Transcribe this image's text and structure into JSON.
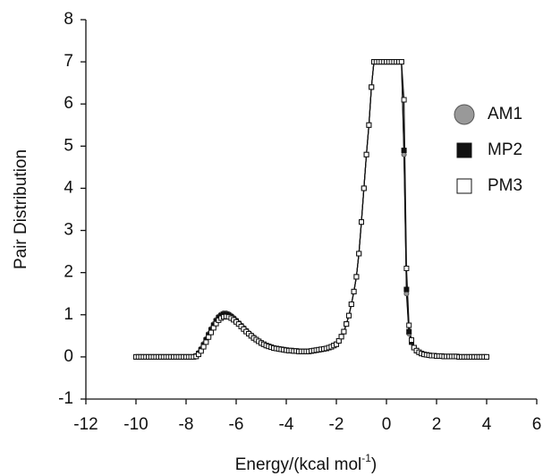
{
  "chart_data": {
    "type": "scatter",
    "y_label": "Pair Distribution",
    "x_label": "Energy/(kcal mol",
    "x_label_sup": "-1",
    "x_label_end": ")",
    "xlim": [
      -12,
      6
    ],
    "xticks": [
      -12,
      -10,
      -8,
      -6,
      -4,
      -2,
      0,
      2,
      4,
      6
    ],
    "ylim": [
      -1,
      8
    ],
    "yticks": [
      -1,
      0,
      1,
      2,
      3,
      4,
      5,
      6,
      7,
      8
    ],
    "legend": "upper-right",
    "line_color": "#111111",
    "x": [
      -10,
      -9.9,
      -9.8,
      -9.7,
      -9.6,
      -9.5,
      -9.4,
      -9.3,
      -9.2,
      -9.1,
      -9,
      -8.9,
      -8.8,
      -8.7,
      -8.6,
      -8.5,
      -8.4,
      -8.3,
      -8.2,
      -8.1,
      -8,
      -7.9,
      -7.8,
      -7.7,
      -7.6,
      -7.5,
      -7.4,
      -7.3,
      -7.2,
      -7.1,
      -7,
      -6.9,
      -6.8,
      -6.7,
      -6.6,
      -6.5,
      -6.4,
      -6.3,
      -6.2,
      -6.1,
      -6,
      -5.9,
      -5.8,
      -5.7,
      -5.6,
      -5.5,
      -5.4,
      -5.3,
      -5.2,
      -5.1,
      -5,
      -4.9,
      -4.8,
      -4.7,
      -4.6,
      -4.5,
      -4.4,
      -4.3,
      -4.2,
      -4.1,
      -4,
      -3.9,
      -3.8,
      -3.7,
      -3.6,
      -3.5,
      -3.4,
      -3.3,
      -3.2,
      -3.1,
      -3,
      -2.9,
      -2.8,
      -2.7,
      -2.6,
      -2.5,
      -2.4,
      -2.3,
      -2.2,
      -2.1,
      -2,
      -1.9,
      -1.8,
      -1.7,
      -1.6,
      -1.5,
      -1.4,
      -1.3,
      -1.2,
      -1.1,
      -1,
      -0.9,
      -0.8,
      -0.7,
      -0.6,
      -0.5,
      -0.4,
      -0.3,
      -0.2,
      -0.1,
      0,
      0.1,
      0.2,
      0.3,
      0.4,
      0.5,
      0.6,
      0.7,
      0.8,
      0.9,
      1,
      1.1,
      1.2,
      1.3,
      1.4,
      1.5,
      1.6,
      1.7,
      1.8,
      1.9,
      2,
      2.1,
      2.2,
      2.3,
      2.4,
      2.5,
      2.6,
      2.7,
      2.8,
      2.9,
      3,
      3.1,
      3.2,
      3.3,
      3.4,
      3.5,
      3.6,
      3.7,
      3.8,
      3.9,
      4
    ],
    "series": [
      {
        "name": "AM1",
        "marker": "circle",
        "color": "#999999",
        "edge": "#555555",
        "values": [
          0,
          0,
          0,
          0,
          0,
          0,
          0,
          0,
          0,
          0,
          0,
          0,
          0,
          0,
          0,
          0,
          0,
          0,
          0,
          0,
          0,
          0,
          0,
          0,
          0.03,
          0.1,
          0.2,
          0.31,
          0.43,
          0.55,
          0.67,
          0.78,
          0.88,
          0.96,
          1.01,
          1.04,
          1.04,
          1.02,
          0.98,
          0.93,
          0.87,
          0.81,
          0.75,
          0.69,
          0.63,
          0.57,
          0.52,
          0.47,
          0.42,
          0.38,
          0.34,
          0.3,
          0.27,
          0.25,
          0.23,
          0.21,
          0.2,
          0.19,
          0.18,
          0.17,
          0.16,
          0.15,
          0.15,
          0.14,
          0.14,
          0.13,
          0.13,
          0.13,
          0.13,
          0.13,
          0.14,
          0.15,
          0.16,
          0.17,
          0.18,
          0.19,
          0.2,
          0.22,
          0.24,
          0.27,
          0.3,
          0.38,
          0.48,
          0.6,
          0.78,
          0.98,
          1.25,
          1.55,
          1.9,
          2.45,
          3.2,
          4,
          4.8,
          5.5,
          6.4,
          7,
          7,
          7,
          7,
          7,
          7,
          7,
          7,
          7,
          7,
          7,
          7,
          4.8,
          1.5,
          0.55,
          0.35,
          0.22,
          0.15,
          0.11,
          0.08,
          0.06,
          0.05,
          0.04,
          0.03,
          0.03,
          0.02,
          0.02,
          0.02,
          0.01,
          0.01,
          0.01,
          0.01,
          0.01,
          0.01,
          0,
          0,
          0,
          0,
          0,
          0,
          0,
          0,
          0,
          0,
          0,
          0
        ]
      },
      {
        "name": "MP2",
        "marker": "square",
        "color": "#111111",
        "edge": "#111111",
        "values": [
          0,
          0,
          0,
          0,
          0,
          0,
          0,
          0,
          0,
          0,
          0,
          0,
          0,
          0,
          0,
          0,
          0,
          0,
          0,
          0,
          0,
          0,
          0,
          0,
          0.02,
          0.08,
          0.17,
          0.28,
          0.4,
          0.52,
          0.64,
          0.75,
          0.85,
          0.93,
          0.98,
          1.01,
          1.01,
          0.99,
          0.95,
          0.9,
          0.85,
          0.79,
          0.73,
          0.67,
          0.61,
          0.55,
          0.5,
          0.45,
          0.41,
          0.37,
          0.33,
          0.3,
          0.27,
          0.25,
          0.23,
          0.21,
          0.2,
          0.19,
          0.18,
          0.17,
          0.16,
          0.15,
          0.15,
          0.14,
          0.14,
          0.13,
          0.13,
          0.13,
          0.13,
          0.13,
          0.14,
          0.15,
          0.16,
          0.17,
          0.18,
          0.19,
          0.2,
          0.22,
          0.24,
          0.27,
          0.3,
          0.38,
          0.48,
          0.6,
          0.78,
          0.98,
          1.25,
          1.55,
          1.9,
          2.45,
          3.2,
          4,
          4.8,
          5.5,
          6.4,
          7,
          7,
          7,
          7,
          7,
          7,
          7,
          7,
          7,
          7,
          7,
          7,
          4.9,
          1.6,
          0.6,
          0.35,
          0.22,
          0.15,
          0.11,
          0.08,
          0.06,
          0.05,
          0.04,
          0.03,
          0.03,
          0.02,
          0.02,
          0.02,
          0.01,
          0.01,
          0.01,
          0.01,
          0.01,
          0.01,
          0,
          0,
          0,
          0,
          0,
          0,
          0,
          0,
          0,
          0,
          0,
          0
        ]
      },
      {
        "name": "PM3",
        "marker": "square",
        "color": "#ffffff",
        "edge": "#111111",
        "values": [
          0,
          0,
          0,
          0,
          0,
          0,
          0,
          0,
          0,
          0,
          0,
          0,
          0,
          0,
          0,
          0,
          0,
          0,
          0,
          0,
          0,
          0,
          0,
          0,
          0.01,
          0.06,
          0.14,
          0.24,
          0.35,
          0.47,
          0.58,
          0.69,
          0.79,
          0.87,
          0.92,
          0.95,
          0.96,
          0.95,
          0.92,
          0.88,
          0.83,
          0.78,
          0.72,
          0.66,
          0.6,
          0.55,
          0.5,
          0.45,
          0.41,
          0.37,
          0.33,
          0.3,
          0.27,
          0.25,
          0.23,
          0.21,
          0.2,
          0.19,
          0.18,
          0.17,
          0.16,
          0.15,
          0.15,
          0.14,
          0.14,
          0.13,
          0.13,
          0.13,
          0.13,
          0.13,
          0.14,
          0.15,
          0.16,
          0.17,
          0.18,
          0.19,
          0.2,
          0.22,
          0.24,
          0.27,
          0.3,
          0.38,
          0.48,
          0.6,
          0.78,
          0.98,
          1.25,
          1.55,
          1.9,
          2.45,
          3.2,
          4,
          4.8,
          5.5,
          6.4,
          7,
          7,
          7,
          7,
          7,
          7,
          7,
          7,
          7,
          7,
          7,
          7,
          6.1,
          2.1,
          0.75,
          0.4,
          0.22,
          0.15,
          0.11,
          0.08,
          0.06,
          0.05,
          0.04,
          0.03,
          0.03,
          0.02,
          0.02,
          0.02,
          0.01,
          0.01,
          0.01,
          0.01,
          0.01,
          0.01,
          0,
          0,
          0,
          0,
          0,
          0,
          0,
          0,
          0,
          0,
          0,
          0
        ]
      }
    ]
  }
}
